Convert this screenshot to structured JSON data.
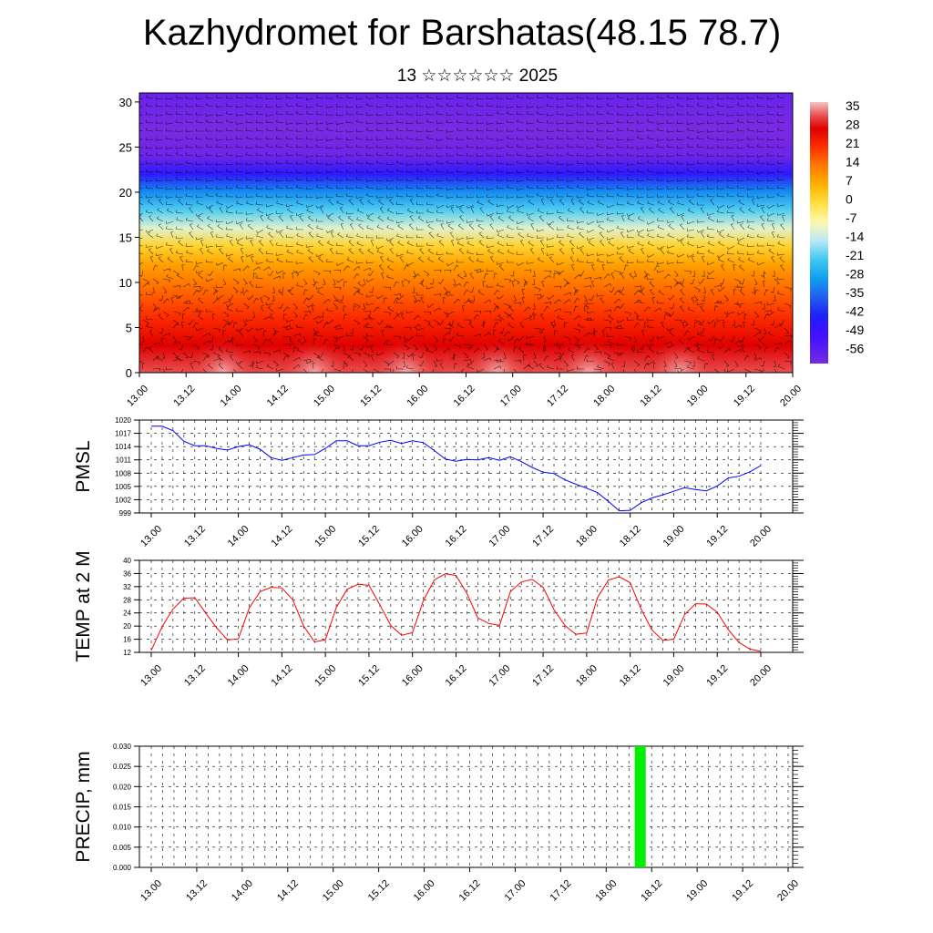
{
  "header": {
    "title": "Kazhydromet for Barshatas(48.15 78.7)",
    "subtitle": "13 ☆☆☆☆☆☆ 2025"
  },
  "time_axis": {
    "tick_labels": [
      "13.00",
      "13.12",
      "14.00",
      "14.12",
      "15.00",
      "15.12",
      "16.00",
      "16.12",
      "17.00",
      "17.12",
      "18.00",
      "18.12",
      "19.00",
      "19.12",
      "20.00"
    ]
  },
  "chart_data": [
    {
      "type": "heatmap",
      "id": "cross-section",
      "title": "",
      "xlabel": "",
      "ylabel": "",
      "ylim": [
        0,
        31
      ],
      "y_ticks": [
        0,
        5,
        10,
        15,
        20,
        25,
        30
      ],
      "x_ticks": [
        "13.00",
        "13.12",
        "14.00",
        "14.12",
        "15.00",
        "15.12",
        "16.00",
        "16.12",
        "17.00",
        "17.12",
        "18.00",
        "18.12",
        "19.00",
        "19.12",
        "20.00"
      ],
      "colorbar": {
        "labels": [
          "35",
          "28",
          "21",
          "14",
          "7",
          "0",
          "-7",
          "-14",
          "-21",
          "-28",
          "-35",
          "-42",
          "-49",
          "-56"
        ],
        "range": [
          -60,
          38
        ]
      },
      "temperature_profile_by_level": [
        {
          "level": 0,
          "value": 33
        },
        {
          "level": 3,
          "value": 28
        },
        {
          "level": 6,
          "value": 22
        },
        {
          "level": 9,
          "value": 16
        },
        {
          "level": 12,
          "value": 9
        },
        {
          "level": 14,
          "value": 2
        },
        {
          "level": 16,
          "value": -10
        },
        {
          "level": 18,
          "value": -20
        },
        {
          "level": 20,
          "value": -30
        },
        {
          "level": 22,
          "value": -45
        },
        {
          "level": 24,
          "value": -58
        },
        {
          "level": 27,
          "value": -60
        },
        {
          "level": 31,
          "value": -57
        }
      ],
      "wind_barbs": true
    },
    {
      "type": "line",
      "id": "pmsl",
      "ylabel": "PMSL",
      "ylim": [
        999,
        1020
      ],
      "y_ticks": [
        999,
        1002,
        1005,
        1008,
        1011,
        1014,
        1017,
        1020
      ],
      "x_ticks": [
        "13.00",
        "13.12",
        "14.00",
        "14.12",
        "15.00",
        "15.12",
        "16.00",
        "16.12",
        "17.00",
        "17.12",
        "18.00",
        "18.12",
        "19.00",
        "19.12",
        "20.00"
      ],
      "step_hours": 3,
      "color": "#0000ff",
      "values": [
        1018.6,
        1018.6,
        1017.6,
        1015.2,
        1014.2,
        1014.2,
        1013.6,
        1013.2,
        1014.0,
        1014.4,
        1013.4,
        1011.5,
        1010.9,
        1011.5,
        1012.1,
        1012.2,
        1013.6,
        1015.3,
        1015.3,
        1014.2,
        1014.2,
        1015.0,
        1015.4,
        1014.7,
        1015.3,
        1014.9,
        1013.1,
        1011.2,
        1010.7,
        1011.1,
        1011.0,
        1011.5,
        1010.9,
        1011.7,
        1010.6,
        1009.3,
        1008.2,
        1007.9,
        1006.5,
        1005.5,
        1004.6,
        1003.6,
        1001.6,
        999.5,
        999.6,
        1001.3,
        1002.4,
        1003.1,
        1003.9,
        1004.7,
        1004.3,
        1004.0,
        1005.1,
        1006.9,
        1007.3,
        1008.3,
        1009.7
      ]
    },
    {
      "type": "line",
      "id": "temp2m",
      "ylabel": "TEMP at 2 M",
      "ylim": [
        12,
        40
      ],
      "y_ticks": [
        12,
        16,
        20,
        24,
        28,
        32,
        36,
        40
      ],
      "x_ticks": [
        "13.00",
        "13.12",
        "14.00",
        "14.12",
        "15.00",
        "15.12",
        "16.00",
        "16.12",
        "17.00",
        "17.12",
        "18.00",
        "18.12",
        "19.00",
        "19.12",
        "20.00"
      ],
      "step_hours": 3,
      "color": "#ff0000",
      "values": [
        12.6,
        19.8,
        25.2,
        28.5,
        28.6,
        24.0,
        19.5,
        15.8,
        16.1,
        25.5,
        30.5,
        31.8,
        31.6,
        28.0,
        20.0,
        15.2,
        15.8,
        25.7,
        31.2,
        32.7,
        32.4,
        26.5,
        20.2,
        17.2,
        18.0,
        27.8,
        34.0,
        35.9,
        35.4,
        30.0,
        22.5,
        20.8,
        20.2,
        30.5,
        33.4,
        34.2,
        31.8,
        25.0,
        20.2,
        17.5,
        17.9,
        28.7,
        34.0,
        35.0,
        33.2,
        25.2,
        18.8,
        15.7,
        16.0,
        23.5,
        26.8,
        26.7,
        24.2,
        19.0,
        15.0,
        13.0,
        12.3
      ]
    },
    {
      "type": "bar",
      "id": "precip",
      "ylabel": "PRECIP, mm",
      "ylim": [
        0,
        0.03
      ],
      "y_ticks": [
        "0.000",
        "0.005",
        "0.010",
        "0.015",
        "0.020",
        "0.025",
        "0.030"
      ],
      "x_ticks": [
        "13.00",
        "13.12",
        "14.00",
        "14.12",
        "15.00",
        "15.12",
        "16.00",
        "16.12",
        "17.00",
        "17.12",
        "18.00",
        "18.12",
        "19.00",
        "19.12",
        "20.00"
      ],
      "bars": [
        {
          "time": "18.09",
          "value": 0.03
        }
      ],
      "color": "#00ee00"
    }
  ]
}
